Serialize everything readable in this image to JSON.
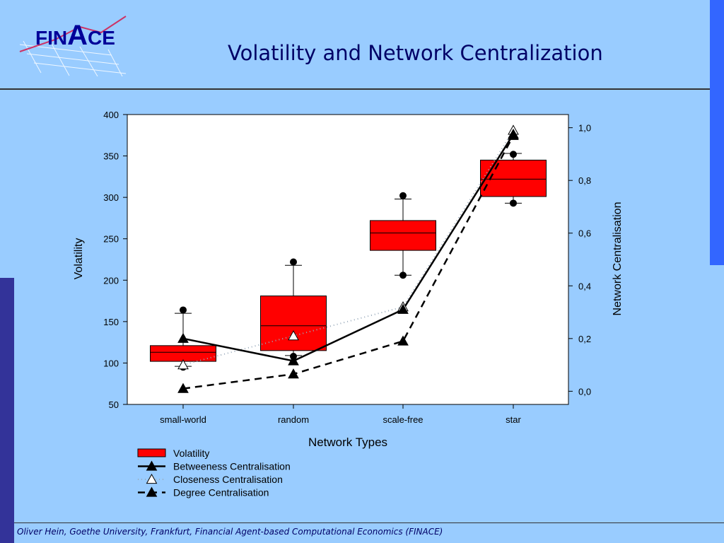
{
  "slide": {
    "title": "Volatility and Network Centralization",
    "footer": "Oliver Hein, Goethe University, Frankfurt, Financial Agent-based Computational Economics (FINACE)"
  },
  "logo": {
    "text_left": "FIN",
    "text_big": "A",
    "text_right": "CE"
  },
  "colors": {
    "background": "#99ccff",
    "accent_bar": "#3366ff",
    "left_bar": "#333399",
    "title": "#000066",
    "box_fill": "#ff0000"
  },
  "chart_data": {
    "type": "box",
    "title": "",
    "xlabel": "Network Types",
    "ylabel": "Volatility",
    "y2label": "Network Centralisation",
    "categories": [
      "small-world",
      "random",
      "scale-free",
      "star"
    ],
    "ylim": [
      50,
      400
    ],
    "yticks": [
      50,
      100,
      150,
      200,
      250,
      300,
      350,
      400
    ],
    "y2lim": [
      -0.05,
      1.05
    ],
    "y2ticks": [
      0.0,
      0.2,
      0.4,
      0.6,
      0.8,
      1.0
    ],
    "y2ticklabels": [
      "0,0",
      "0,2",
      "0,4",
      "0,6",
      "0,8",
      "1,0"
    ],
    "grid": false,
    "legend_position": "below",
    "box_series": {
      "name": "Volatility",
      "boxes": [
        {
          "q1": 102,
          "median": 113,
          "q3": 121,
          "whisker_low": 96,
          "whisker_high": 160,
          "outliers": [
            95,
            164
          ]
        },
        {
          "q1": 115,
          "median": 145,
          "q3": 181,
          "whisker_low": 109,
          "whisker_high": 218,
          "outliers": [
            108,
            222
          ]
        },
        {
          "q1": 236,
          "median": 257,
          "q3": 272,
          "whisker_low": 206,
          "whisker_high": 298,
          "outliers": [
            206,
            302
          ]
        },
        {
          "q1": 301,
          "median": 322,
          "q3": 345,
          "whisker_low": 293,
          "whisker_high": 353,
          "outliers": [
            293,
            352
          ]
        }
      ]
    },
    "series": [
      {
        "name": "Betweeness Centralisation",
        "values": [
          0.2,
          0.115,
          0.31,
          0.975
        ],
        "style": "solid",
        "marker": "filled-triangle"
      },
      {
        "name": "Closeness Centralisation",
        "values": [
          0.1,
          0.21,
          0.32,
          0.99
        ],
        "style": "dotted",
        "marker": "open-triangle"
      },
      {
        "name": "Degree Centralisation",
        "values": [
          0.01,
          0.065,
          0.19,
          0.97
        ],
        "style": "dashed",
        "marker": "filled-triangle"
      }
    ]
  }
}
